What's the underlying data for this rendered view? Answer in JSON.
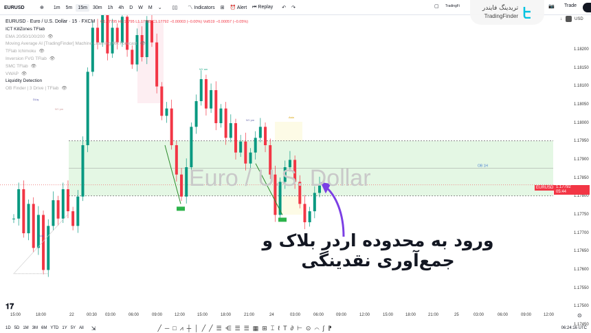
{
  "toolbar": {
    "symbol": "EURUSD",
    "timeframes": [
      "1m",
      "5m",
      "15m",
      "30m",
      "1h",
      "4h",
      "D",
      "W",
      "M"
    ],
    "active_timeframe": "15m",
    "indicators_label": "Indicators",
    "alert_label": "Alert",
    "replay_label": "Replay",
    "trading_label": "TradingFi",
    "trade_label": "Trade"
  },
  "logo": {
    "fa": "تریدینگ فایندر",
    "en": "TradingFinder",
    "color": "#00c2e0"
  },
  "axis_top": {
    "arrow": "↓",
    "currency": "USD"
  },
  "legend": {
    "title": "EURUSD · Euro / U.S. Dollar · 15 · FXCM",
    "ohlc": "O1.17795 H1.17795 L1.17785 C1.17792 −0.00003 (−0.00%) Vol519 −0.00057 (−0.05%)",
    "items": [
      {
        "label": "ICT KillZones TFlab",
        "dim": false,
        "eye": false
      },
      {
        "label": "EMA 20/50/100/200",
        "dim": true,
        "eye": true
      },
      {
        "label": "Moving Average AI [TradingFinder] Machine Learning MA Forecast",
        "dim": true,
        "eye": true
      },
      {
        "label": "TFlab Ichimoku",
        "dim": true,
        "eye": true
      },
      {
        "label": "Inversion FVG TFlab",
        "dim": true,
        "eye": true
      },
      {
        "label": "SMC TFlab",
        "dim": true,
        "eye": true
      },
      {
        "label": "VWAP",
        "dim": true,
        "eye": true
      },
      {
        "label": "Liquidity Detection",
        "dim": false,
        "eye": false
      },
      {
        "label": "OB Finder | 3 Drive | TFlab",
        "dim": true,
        "eye": true
      }
    ]
  },
  "price_axis": [
    "1.18200",
    "1.18150",
    "1.18100",
    "1.18050",
    "1.18000",
    "1.17950",
    "1.17900",
    "1.17850",
    "1.17800",
    "1.17750",
    "1.17700",
    "1.17650",
    "1.17600",
    "1.17550",
    "1.17500",
    "1.17450"
  ],
  "current_price": {
    "symbol": "EURUSD",
    "price": "1.17792",
    "countdown": "05:44",
    "color": "#f23645"
  },
  "chart": {
    "watermark": "Euro / U.S. Dollar",
    "ob_label": "OB 1H",
    "ob_high": 1.17912,
    "ob_low": 1.17762,
    "session_labels": [
      "NY pm",
      "NY am",
      "NY pm",
      "Asia"
    ],
    "liq_labels": [
      "DLiq",
      "DLiq"
    ],
    "price_path": [
      1.177,
      1.1778,
      1.1766,
      1.1774,
      1.1762,
      1.1771,
      1.1756,
      1.1768,
      1.1775,
      1.177,
      1.1778,
      1.1772,
      1.1768,
      1.1776,
      1.179,
      1.181,
      1.1822,
      1.1818,
      1.1826,
      1.1815,
      1.1822,
      1.1818,
      1.1825,
      1.1816,
      1.1812,
      1.182,
      1.1814,
      1.1824,
      1.1818,
      1.1806,
      1.1798,
      1.18,
      1.179,
      1.1782,
      1.1776,
      1.1784,
      1.1795,
      1.1802,
      1.1808,
      1.18,
      1.1805,
      1.1796,
      1.18,
      1.1792,
      1.1796,
      1.1788,
      1.1791,
      1.1785,
      1.1788,
      1.1792,
      1.1795,
      1.179,
      1.1782,
      1.1771,
      1.178,
      1.1784,
      1.1786,
      1.178,
      1.1774,
      1.1769,
      1.1772,
      1.1777,
      1.1779
    ]
  },
  "caption": "ورود به محدوده اردر بلاک و جمع‌آوری نقدینگی",
  "time_axis": [
    "15:00",
    "18:00",
    "22",
    "00:30",
    "03:00",
    "06:00",
    "09:00",
    "12:00",
    "15:00",
    "18:00",
    "21:00",
    "24",
    "03:00",
    "06:00",
    "09:00",
    "12:00",
    "15:00",
    "18:00",
    "21:00",
    "25",
    "03:00",
    "06:00",
    "09:00",
    "12:00"
  ],
  "bottom": {
    "ranges": [
      "1D",
      "5D",
      "1M",
      "3M",
      "6M",
      "YTD",
      "1Y",
      "5Y",
      "All"
    ],
    "clock": "06:24:16 UTC"
  },
  "colors": {
    "up": "#089981",
    "down": "#f23645",
    "ob_fill": "#e4f7e4",
    "arrow": "#7b3fe4"
  }
}
